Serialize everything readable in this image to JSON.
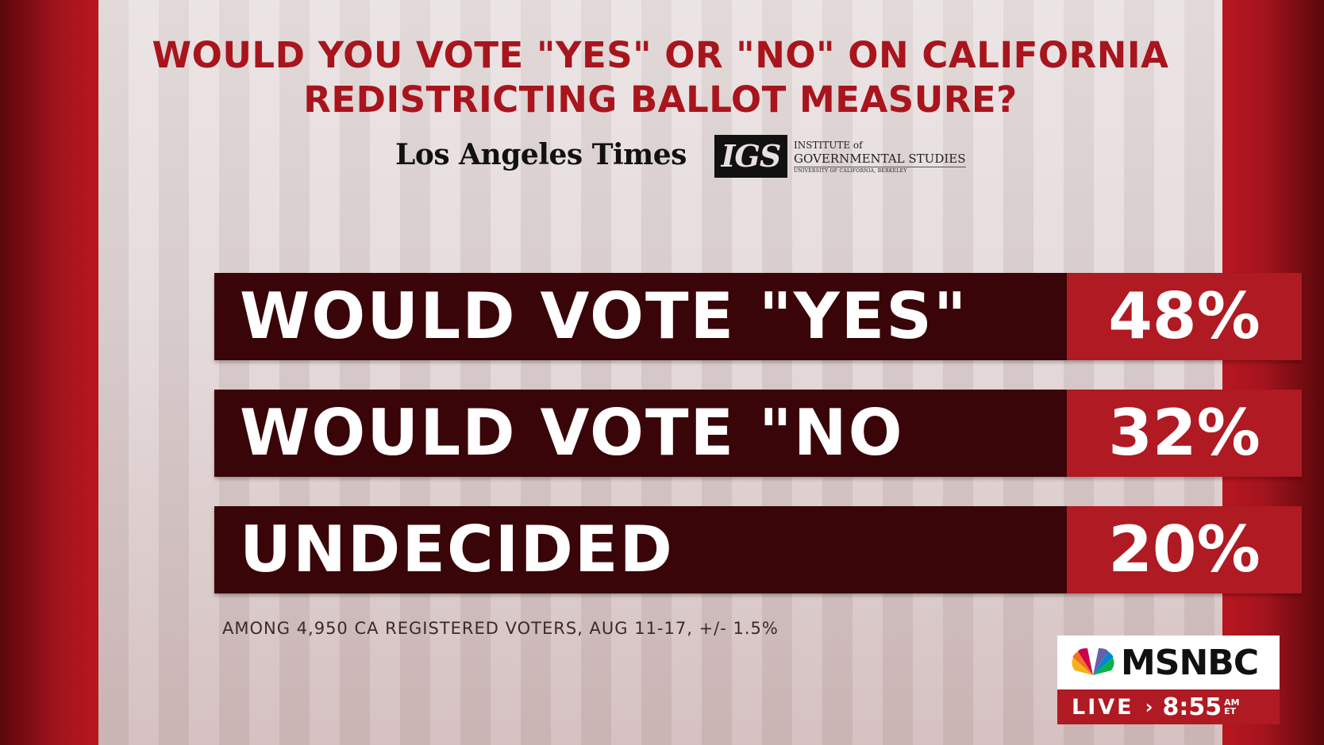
{
  "title": {
    "line1": "WOULD YOU VOTE \"YES\" OR \"NO\" ON CALIFORNIA",
    "line2": "REDISTRICTING BALLOT MEASURE?"
  },
  "sources": {
    "newspaper": "Los Angeles Times",
    "igs_mark": "IGS",
    "igs_line1": "INSTITUTE of",
    "igs_line2": "GOVERNMENTAL STUDIES",
    "igs_line3": "UNIVERSITY OF CALIFORNIA, BERKELEY"
  },
  "chart_data": {
    "type": "table",
    "categories": [
      "WOULD VOTE \"YES\"",
      "WOULD VOTE \"NO",
      "UNDECIDED"
    ],
    "values": [
      48,
      32,
      20
    ],
    "value_labels": [
      "48%",
      "32%",
      "20%"
    ],
    "title": "WOULD YOU VOTE \"YES\" OR \"NO\" ON CALIFORNIA REDISTRICTING BALLOT MEASURE?"
  },
  "footnote": "AMONG 4,950 CA REGISTERED VOTERS, AUG 11-17, +/- 1.5%",
  "bug": {
    "network": "MSNBC",
    "live": "LIVE",
    "chevron": "›",
    "time": "8:55",
    "ampm_top": "AM",
    "ampm_bottom": "ET"
  },
  "colors": {
    "title_red": "#a8151d",
    "row_dark": "#3a0508",
    "row_red": "#b01a22"
  }
}
